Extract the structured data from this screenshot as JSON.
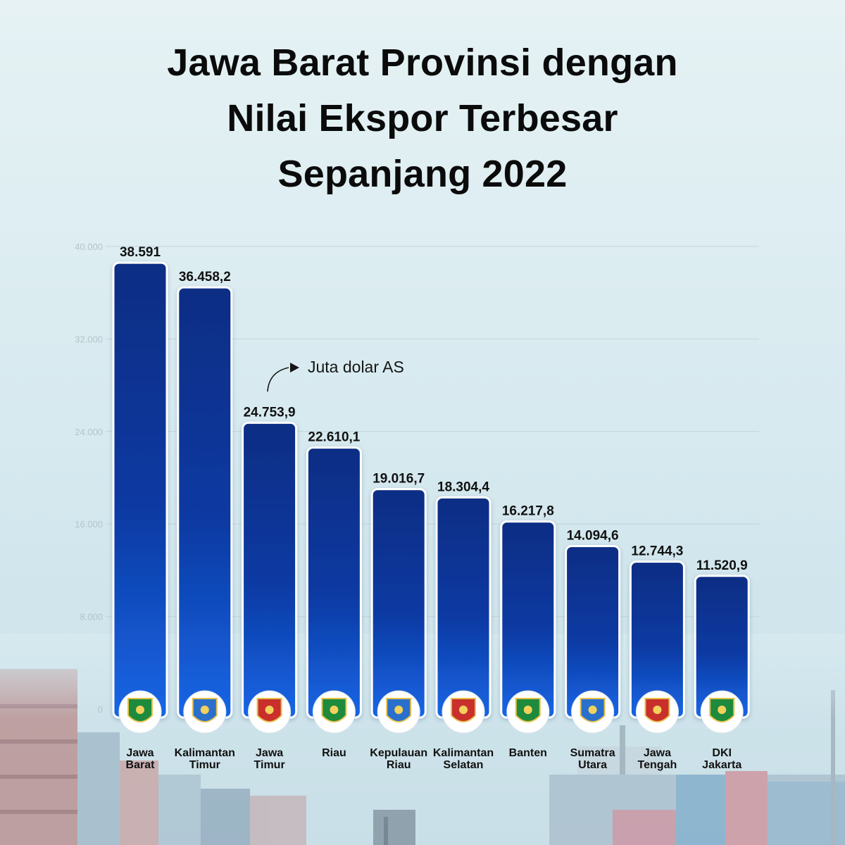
{
  "title_lines": [
    "Jawa Barat Provinsi dengan",
    "Nilai Ekspor Terbesar",
    "Sepanjang 2022"
  ],
  "annotation": "Juta dolar AS",
  "colors": {
    "bar_top": "#0d2d84",
    "bar_bottom": "#1466e6",
    "bar_border": "#ffffff",
    "grid": "#c4d3da",
    "tick": "#b5c3cb",
    "text": "#111111"
  },
  "chart_data": {
    "type": "bar",
    "categories": [
      [
        "Jawa",
        "Barat"
      ],
      [
        "Kalimantan",
        "Timur"
      ],
      [
        "Jawa",
        "Timur"
      ],
      [
        "Riau"
      ],
      [
        "Kepulauan",
        "Riau"
      ],
      [
        "Kalimantan",
        "Selatan"
      ],
      [
        "Banten"
      ],
      [
        "Sumatra",
        "Utara"
      ],
      [
        "Jawa",
        "Tengah"
      ],
      [
        "DKI",
        "Jakarta"
      ]
    ],
    "values": [
      38591,
      36458.2,
      24753.9,
      22610.1,
      19016.7,
      18304.4,
      16217.8,
      14094.6,
      12744.3,
      11520.9
    ],
    "value_labels": [
      "38.591",
      "36.458,2",
      "24.753,9",
      "22.610,1",
      "19.016,7",
      "18.304,4",
      "16.217,8",
      "14.094,6",
      "12.744,3",
      "11.520,9"
    ],
    "icons": [
      "jawa-barat-emblem-icon",
      "kalimantan-timur-emblem-icon",
      "jawa-timur-emblem-icon",
      "riau-emblem-icon",
      "kepulauan-riau-emblem-icon",
      "kalimantan-selatan-emblem-icon",
      "banten-emblem-icon",
      "sumatra-utara-emblem-icon",
      "jawa-tengah-emblem-icon",
      "dki-jakarta-emblem-icon"
    ],
    "yticks": [
      0,
      8000,
      16000,
      24000,
      32000,
      40000
    ],
    "ytick_labels": [
      "0",
      "8.000",
      "16.000",
      "24.000",
      "32.000",
      "40.000"
    ],
    "ylim": [
      0,
      40000
    ],
    "grid": true
  }
}
